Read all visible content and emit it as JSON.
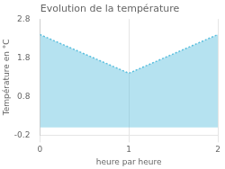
{
  "chart_data": {
    "type": "area",
    "title": "Evolution de la température",
    "x_label": "heure par heure",
    "y_label": "Température en °C",
    "x": [
      0,
      1,
      2
    ],
    "values": [
      2.4,
      1.4,
      2.4
    ],
    "color": "#5bbfde",
    "line_style": "dotted",
    "xlim": [
      0,
      2
    ],
    "xticks": [
      0,
      1,
      2
    ],
    "ylim": [
      -0.2,
      2.8
    ],
    "yticks": [
      -0.2,
      0.8,
      1.8,
      2.8
    ],
    "grid": "x"
  }
}
